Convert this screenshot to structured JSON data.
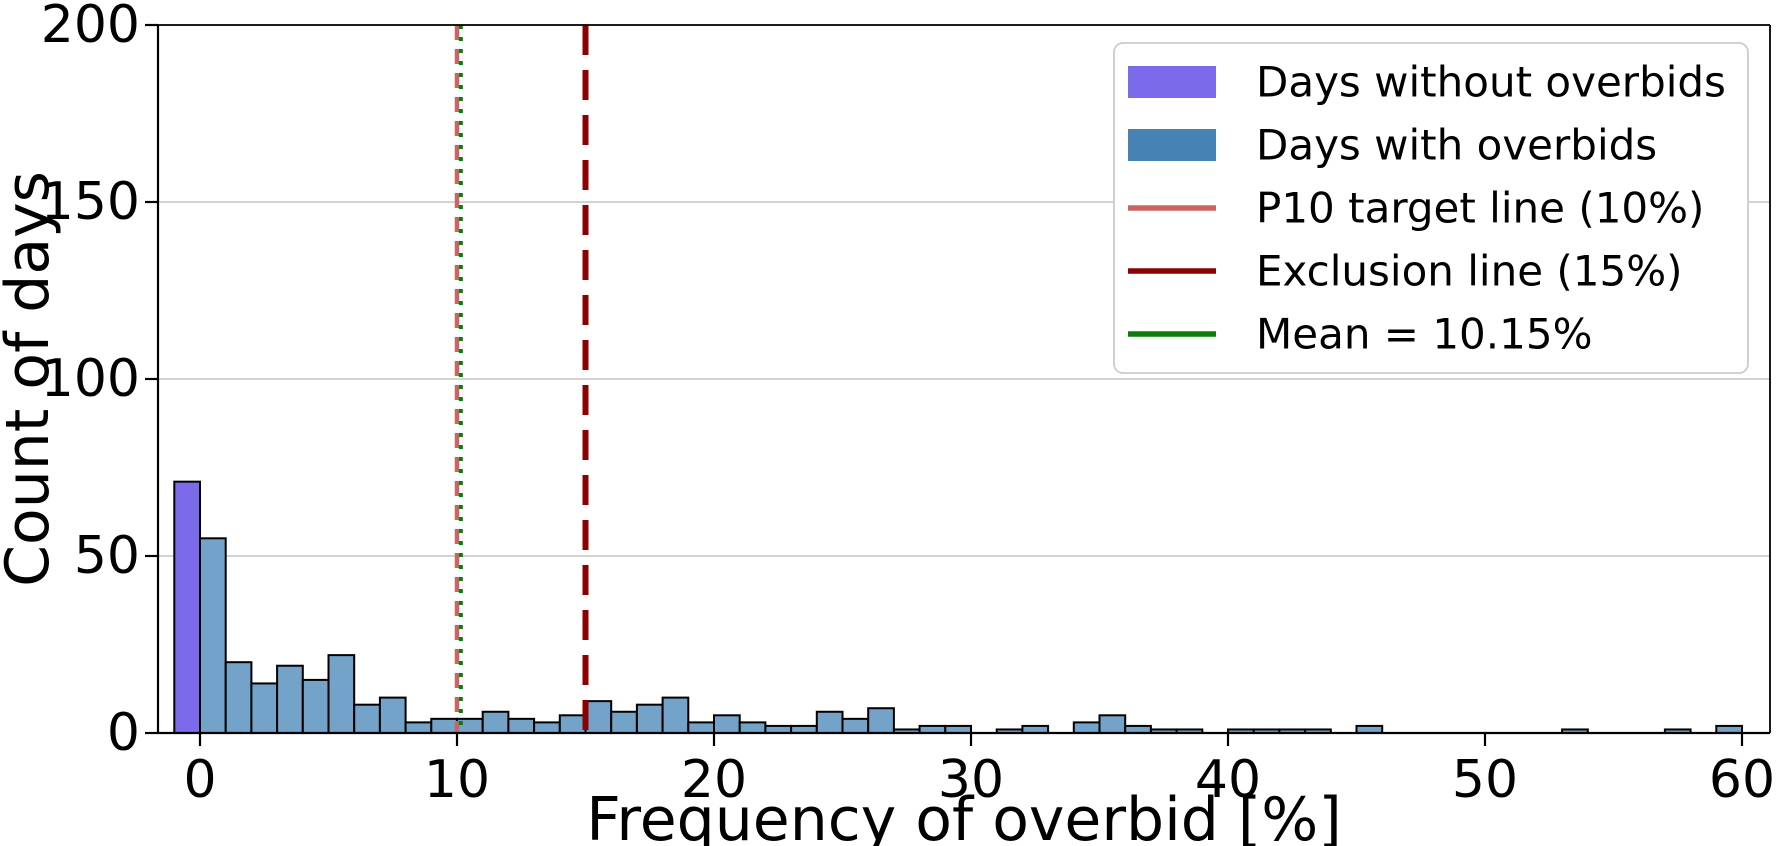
{
  "figure": {
    "kind": "matplotlib-histogram-figure"
  },
  "colors": {
    "bar_purple_fill": "#7B6BEB",
    "bar_blue_fill": "#73A3C9",
    "bar_edge": "#000000",
    "legend_purple": "#7B6BEB",
    "legend_blue": "#4682B4",
    "p10_line": "#CD6464",
    "exclusion_line": "#8B0000",
    "mean_line": "#0A7D0A",
    "grid": "#CDCDCD",
    "spine": "#000000",
    "text": "#000000",
    "legend_border": "#CCCCCC",
    "background": "#FFFFFF"
  },
  "legend": {
    "items": [
      {
        "type": "patch",
        "color_key": "legend_purple",
        "label": "Days without overbids"
      },
      {
        "type": "patch",
        "color_key": "legend_blue",
        "label": "Days with overbids"
      },
      {
        "type": "line",
        "color_key": "p10_line",
        "label": "P10 target line (10%)"
      },
      {
        "type": "line",
        "color_key": "exclusion_line",
        "label": "Exclusion line (15%)"
      },
      {
        "type": "line",
        "color_key": "mean_line",
        "label": "Mean = 10.15%"
      }
    ]
  },
  "chart_data": {
    "type": "histogram",
    "title": "",
    "xlabel": "Frequency of overbid [%]",
    "ylabel": "Count of days",
    "x_ticks": [
      0,
      10,
      20,
      30,
      40,
      50,
      60
    ],
    "y_ticks": [
      0,
      50,
      100,
      150,
      200
    ],
    "xlim": [
      -1.63,
      61.1
    ],
    "ylim": [
      0,
      200
    ],
    "grid": "horizontal",
    "legend_position": "upper right",
    "bin_width": 1,
    "series": [
      {
        "name": "Days without overbids",
        "color_key": "bar_purple_fill",
        "bins_start": -1,
        "counts": [
          71
        ]
      },
      {
        "name": "Days with overbids",
        "color_key": "bar_blue_fill",
        "bins_start": 0,
        "counts": [
          55,
          20,
          14,
          19,
          15,
          22,
          8,
          10,
          3,
          4,
          4,
          6,
          4,
          3,
          5,
          9,
          6,
          8,
          10,
          3,
          5,
          3,
          2,
          2,
          6,
          4,
          7,
          1,
          2,
          2,
          0,
          1,
          2,
          0,
          3,
          5,
          2,
          1,
          1,
          0,
          1,
          1,
          1,
          1,
          0,
          2,
          0,
          0,
          0,
          0,
          0,
          0,
          0,
          1,
          0,
          0,
          0,
          1,
          0,
          2
        ]
      }
    ],
    "vlines": [
      {
        "x": 10,
        "color_key": "p10_line",
        "style": "dashed",
        "width": 4.5,
        "dash": "15 9",
        "label": "P10 target line (10%)"
      },
      {
        "x": 10.15,
        "color_key": "mean_line",
        "style": "dotted",
        "width": 4,
        "dash": "4 8",
        "label": "Mean = 10.15%"
      },
      {
        "x": 15,
        "color_key": "exclusion_line",
        "style": "dashed",
        "width": 6,
        "dash": "30 15",
        "label": "Exclusion line (15%)"
      }
    ]
  }
}
